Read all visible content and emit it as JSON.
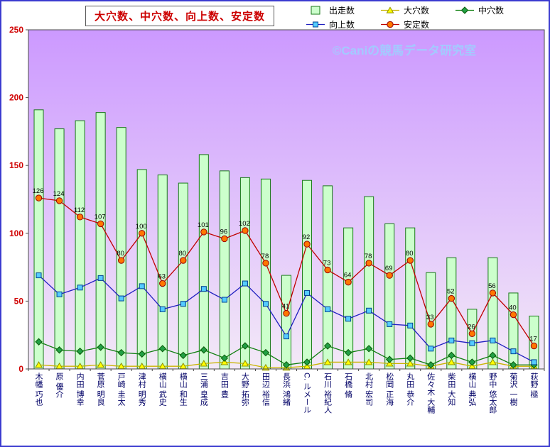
{
  "frame": {
    "border_color": "#3b3bd0",
    "background": "#ffffff"
  },
  "chart_data": {
    "type": "combo",
    "title": "大穴数、中穴数、向上数、安定数",
    "watermark": "©Caniの競馬データ研究室",
    "legend_position": "top-right",
    "grid": false,
    "ylim": [
      0,
      250
    ],
    "yticks": [
      0,
      50,
      100,
      150,
      200,
      250
    ],
    "categories": [
      "木幡 巧也",
      "原 優介",
      "内田 博幸",
      "菅原 明良",
      "戸崎 圭太",
      "津村 明秀",
      "横山 武史",
      "横山 和生",
      "三浦 皇成",
      "吉田 豊",
      "大野 拓弥",
      "田辺 裕信",
      "長浜 鴻緒",
      "C. ルメール",
      "石川 裕紀人",
      "石橋 脩",
      "北村 宏司",
      "松岡 正海",
      "丸田 恭介",
      "佐々木 大輔",
      "柴田 大知",
      "横山 典弘",
      "野中 悠太郎",
      "菊沢 一樹",
      "荻野 極"
    ],
    "series": [
      {
        "key": "starts",
        "name": "出走数",
        "type": "bar",
        "marker": "bar",
        "fill": "#ccffcc",
        "stroke": "#1a7a1a",
        "values": [
          191,
          177,
          183,
          189,
          178,
          147,
          143,
          137,
          158,
          146,
          141,
          140,
          69,
          139,
          135,
          104,
          127,
          107,
          104,
          71,
          82,
          44,
          82,
          56,
          39
        ]
      },
      {
        "key": "big-upset",
        "name": "大穴数",
        "type": "line",
        "marker": "triangle",
        "line_color": "#c8b400",
        "marker_fill": "#ffff00",
        "marker_stroke": "#8f8f00",
        "values": [
          3,
          2,
          2,
          3,
          2,
          2,
          2,
          2,
          4,
          5,
          4,
          1,
          1,
          2,
          5,
          5,
          5,
          4,
          4,
          2,
          5,
          2,
          5,
          2,
          2
        ]
      },
      {
        "key": "mid-upset",
        "name": "中穴数",
        "type": "line",
        "marker": "diamond",
        "line_color": "#108010",
        "marker_fill": "#22a044",
        "marker_stroke": "#0a5a0a",
        "values": [
          20,
          14,
          13,
          16,
          12,
          11,
          15,
          10,
          14,
          8,
          17,
          12,
          3,
          5,
          17,
          12,
          15,
          7,
          8,
          3,
          10,
          5,
          10,
          3,
          3
        ]
      },
      {
        "key": "improve",
        "name": "向上数",
        "type": "line",
        "marker": "square",
        "line_color": "#2020c0",
        "marker_fill": "#55ccff",
        "marker_stroke": "#004090",
        "values": [
          69,
          55,
          60,
          67,
          52,
          61,
          44,
          48,
          59,
          51,
          63,
          48,
          24,
          56,
          44,
          37,
          43,
          33,
          32,
          15,
          21,
          19,
          21,
          13,
          5
        ]
      },
      {
        "key": "stable",
        "name": "安定数",
        "type": "line",
        "marker": "circle",
        "show_labels": true,
        "line_color": "#c00000",
        "marker_fill": "#ff7700",
        "marker_stroke": "#990000",
        "values": [
          126,
          124,
          112,
          107,
          80,
          100,
          63,
          80,
          101,
          96,
          102,
          78,
          41,
          92,
          73,
          64,
          78,
          69,
          80,
          33,
          52,
          26,
          56,
          40,
          17
        ]
      }
    ],
    "colors": {
      "title_color": "#cc0000",
      "plot_bg_top": "#cc99ff",
      "plot_bg_bottom": "#f3e9f7",
      "plot_border": "#4a4a4a",
      "y_tick_label_color": "#d00000",
      "x_label_color": "#000066",
      "data_label_color": "#000000",
      "watermark_color": "#9fcfff"
    }
  }
}
